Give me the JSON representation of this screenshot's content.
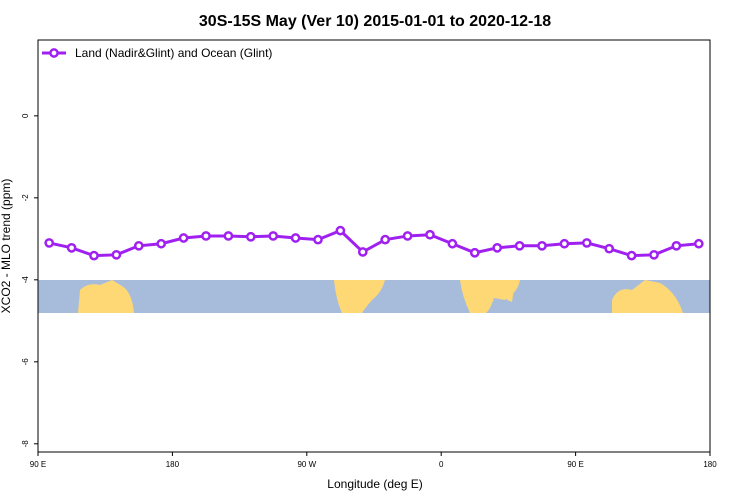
{
  "chart_data": {
    "type": "line",
    "title": "30S-15S May (Ver 10)   2015-01-01 to 2020-12-18",
    "x_label": "Longitude (deg E)",
    "y_label": "XCO2 - MLO trend (ppm)",
    "x": [
      97.5,
      112.5,
      127.5,
      142.5,
      157.5,
      172.5,
      187.5,
      202.5,
      217.5,
      232.5,
      247.5,
      262.5,
      277.5,
      292.5,
      307.5,
      322.5,
      337.5,
      352.5,
      367.5,
      382.5,
      397.5,
      412.5,
      427.5,
      442.5,
      457.5,
      472.5,
      487.5,
      502.5,
      517.5,
      532.5
    ],
    "series": [
      {
        "name": "Land (Nadir&Glint) and Ocean (Glint)",
        "color": "#a020f0",
        "values": [
          -3.1,
          -3.22,
          -3.41,
          -3.39,
          -3.17,
          -3.12,
          -2.98,
          -2.93,
          -2.93,
          -2.95,
          -2.93,
          -2.98,
          -3.02,
          -2.8,
          -3.32,
          -3.02,
          -2.93,
          -2.9,
          -3.12,
          -3.34,
          -3.22,
          -3.17,
          -3.17,
          -3.12,
          -3.1,
          -3.24,
          -3.41,
          -3.39,
          -3.17,
          -3.12
        ]
      }
    ],
    "xlim": [
      90,
      540
    ],
    "xticks": [
      {
        "value": 90,
        "label": "90 E"
      },
      {
        "value": 180,
        "label": "180"
      },
      {
        "value": 270,
        "label": "90 W"
      },
      {
        "value": 360,
        "label": "0"
      },
      {
        "value": 450,
        "label": "90 E"
      },
      {
        "value": 540,
        "label": "180"
      }
    ],
    "ylim": [
      -8.2,
      1.85
    ],
    "yticks": [
      0,
      -2,
      -4,
      -6,
      -8
    ],
    "legend": "top-left"
  }
}
